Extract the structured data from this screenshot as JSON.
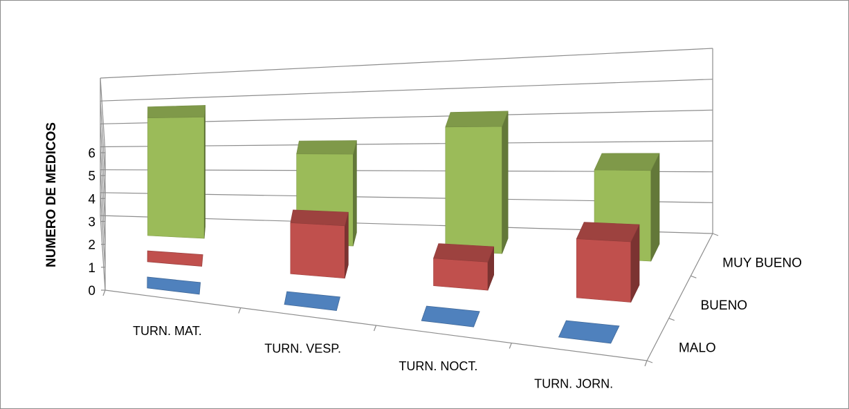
{
  "chart_data": {
    "type": "bar",
    "subtype": "3d-column",
    "ylabel": "NUMERO DE MEDICOS",
    "ylim": [
      0,
      6
    ],
    "yticks": [
      "0",
      "1",
      "2",
      "3",
      "4",
      "5",
      "6"
    ],
    "categories": [
      "TURN. MAT.",
      "TURN. VESP.",
      "TURN. NOCT.",
      "TURN. JORN."
    ],
    "series": [
      {
        "name": "MALO",
        "color": "#4f81bd",
        "values": [
          0,
          0,
          0,
          0
        ]
      },
      {
        "name": "BUENO",
        "color": "#c0504d",
        "values": [
          0,
          2,
          1,
          2
        ]
      },
      {
        "name": "MUY BUENO",
        "color": "#9bbb59",
        "values": [
          5,
          3.5,
          4.5,
          3
        ]
      }
    ],
    "grid": true
  }
}
